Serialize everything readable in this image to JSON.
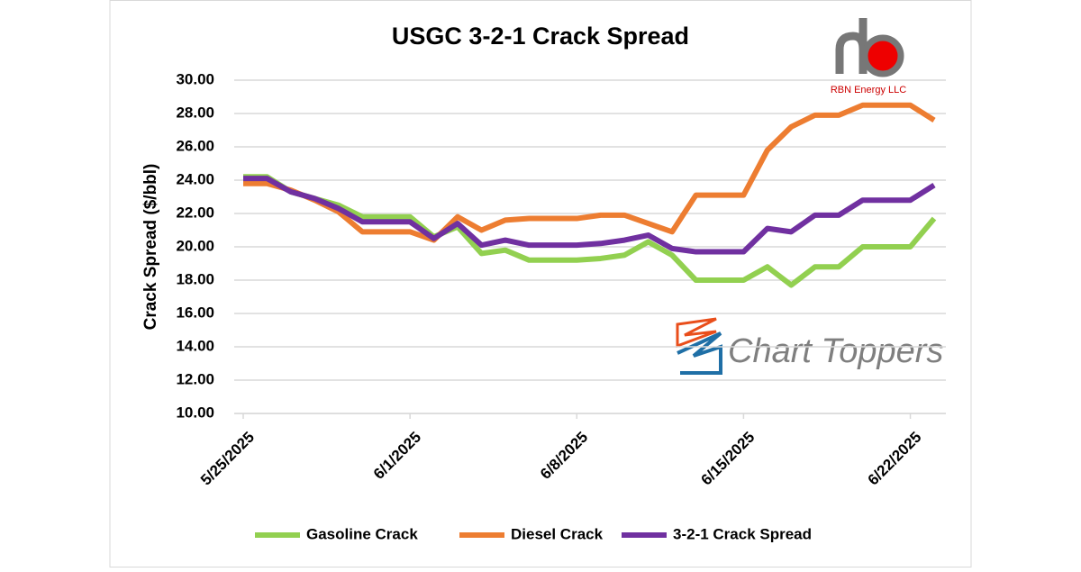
{
  "chart_data": {
    "type": "line",
    "title": "USGC 3-2-1 Crack Spread",
    "y_label": "Crack Spread ($/bbl)",
    "logos": [
      "RBN Energy LLC",
      "Chart Toppers"
    ],
    "x": [
      "5/25/2025",
      "5/26/2025",
      "5/27/2025",
      "5/28/2025",
      "5/29/2025",
      "5/30/2025",
      "5/31/2025",
      "6/1/2025",
      "6/2/2025",
      "6/3/2025",
      "6/4/2025",
      "6/5/2025",
      "6/6/2025",
      "6/7/2025",
      "6/8/2025",
      "6/9/2025",
      "6/10/2025",
      "6/11/2025",
      "6/12/2025",
      "6/13/2025",
      "6/14/2025",
      "6/15/2025",
      "6/16/2025",
      "6/17/2025",
      "6/18/2025",
      "6/19/2025",
      "6/20/2025",
      "6/21/2025",
      "6/22/2025",
      "6/23/2025"
    ],
    "xticks": [
      "5/25/2025",
      "6/1/2025",
      "6/8/2025",
      "6/15/2025",
      "6/22/2025"
    ],
    "series": [
      {
        "name": "Gasoline Crack",
        "color": "#92d050",
        "values": [
          24.2,
          24.2,
          23.3,
          22.9,
          22.5,
          21.8,
          21.8,
          21.8,
          20.6,
          21.2,
          19.6,
          19.8,
          19.2,
          19.2,
          19.2,
          19.3,
          19.5,
          20.3,
          19.5,
          18.0,
          18.0,
          18.0,
          18.8,
          17.7,
          18.8,
          18.8,
          20.0,
          20.0,
          20.0,
          21.7
        ]
      },
      {
        "name": "Diesel Crack",
        "color": "#ed7d31",
        "values": [
          23.8,
          23.8,
          23.4,
          22.8,
          22.1,
          20.9,
          20.9,
          20.9,
          20.4,
          21.8,
          21.0,
          21.6,
          21.7,
          21.7,
          21.7,
          21.9,
          21.9,
          21.4,
          20.9,
          23.1,
          23.1,
          23.1,
          25.8,
          27.2,
          27.9,
          27.9,
          28.5,
          28.5,
          28.5,
          27.6
        ]
      },
      {
        "name": "3-2-1 Crack Spread",
        "color": "#7030a0",
        "values": [
          24.1,
          24.1,
          23.3,
          22.9,
          22.3,
          21.5,
          21.5,
          21.5,
          20.5,
          21.4,
          20.1,
          20.4,
          20.1,
          20.1,
          20.1,
          20.2,
          20.4,
          20.7,
          19.9,
          19.7,
          19.7,
          19.7,
          21.1,
          20.9,
          21.9,
          21.9,
          22.8,
          22.8,
          22.8,
          23.7
        ]
      }
    ],
    "ylim": [
      10,
      30
    ],
    "yticks": [
      {
        "value": 10,
        "label": "10.00"
      },
      {
        "value": 12,
        "label": "12.00"
      },
      {
        "value": 14,
        "label": "14.00"
      },
      {
        "value": 16,
        "label": "16.00"
      },
      {
        "value": 18,
        "label": "18.00"
      },
      {
        "value": 20,
        "label": "20.00"
      },
      {
        "value": 22,
        "label": "22.00"
      },
      {
        "value": 24,
        "label": "24.00"
      },
      {
        "value": 26,
        "label": "26.00"
      },
      {
        "value": 28,
        "label": "28.00"
      },
      {
        "value": 30,
        "label": "30.00"
      }
    ],
    "grid": true,
    "legend": "bottom"
  }
}
